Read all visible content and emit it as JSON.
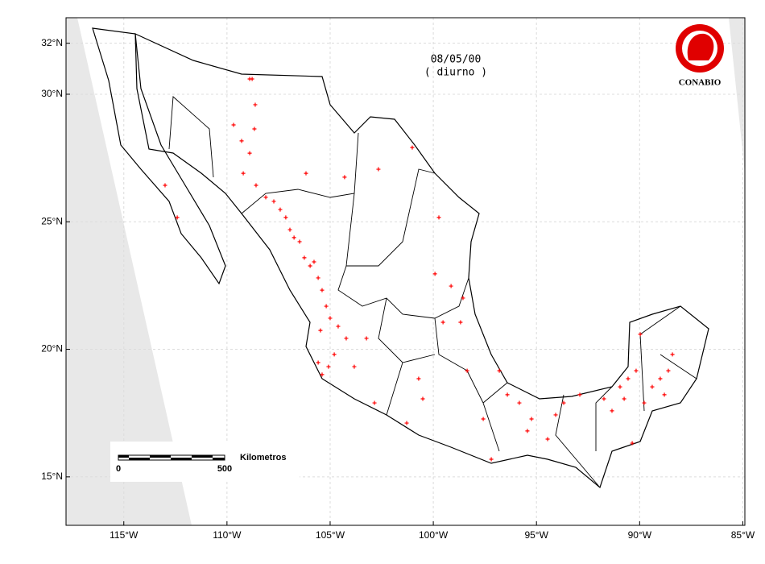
{
  "chart_data": {
    "type": "scatter",
    "title": "08/05/00",
    "subtitle": "( diurno )",
    "color": "#ff0000",
    "x": [
      -108.9,
      -108.78,
      -108.63,
      -108.67,
      -109.68,
      -109.29,
      -108.9,
      -109.21,
      -108.59,
      -108.12,
      -107.73,
      -107.42,
      -107.15,
      -106.95,
      -106.75,
      -106.48,
      -106.25,
      -105.97,
      -105.78,
      -105.58,
      -105.39,
      -105.19,
      -105.0,
      -105.47,
      -104.61,
      -104.22,
      -104.8,
      -105.08,
      -105.39,
      -105.58,
      -103.83,
      -103.24,
      -102.66,
      -101.02,
      -99.73,
      -99.14,
      -98.56,
      -98.68,
      -99.53,
      -100.71,
      -100.51,
      -101.29,
      -102.85,
      -98.36,
      -96.8,
      -96.41,
      -95.83,
      -95.24,
      -95.44,
      -94.46,
      -94.07,
      -93.68,
      -92.9,
      -91.73,
      -90.95,
      -90.75,
      -90.56,
      -90.17,
      -89.97,
      -89.78,
      -89.39,
      -89.0,
      -88.61,
      -88.8,
      -88.41,
      -91.34,
      -90.36,
      -97.19,
      -106.17,
      -104.3,
      -113.0,
      -112.41,
      -99.92,
      -97.58
    ],
    "y": [
      30.6,
      30.6,
      29.59,
      28.64,
      28.8,
      28.17,
      27.69,
      26.9,
      26.43,
      25.96,
      25.8,
      25.48,
      25.17,
      24.69,
      24.38,
      24.22,
      23.59,
      23.27,
      23.43,
      22.8,
      22.32,
      21.69,
      21.22,
      20.74,
      20.9,
      20.43,
      19.8,
      19.32,
      19.01,
      19.48,
      19.32,
      20.43,
      27.06,
      27.91,
      25.17,
      22.48,
      22.01,
      21.06,
      21.06,
      18.85,
      18.06,
      17.11,
      17.9,
      19.16,
      19.16,
      18.22,
      17.9,
      17.27,
      16.8,
      16.48,
      17.43,
      17.9,
      18.22,
      18.06,
      18.53,
      18.06,
      18.85,
      19.16,
      20.59,
      17.9,
      18.53,
      18.85,
      19.16,
      18.22,
      19.8,
      17.59,
      16.32,
      15.69,
      26.9,
      26.75,
      26.43,
      25.17,
      22.96,
      17.27
    ],
    "xlim": [
      -117.8,
      -84.9
    ],
    "ylim": [
      13.1,
      33.0
    ],
    "xticks": [
      {
        "value": -115,
        "label": "115°W"
      },
      {
        "value": -110,
        "label": "110°W"
      },
      {
        "value": -105,
        "label": "105°W"
      },
      {
        "value": -100,
        "label": "100°W"
      },
      {
        "value": -95,
        "label": "95°W"
      },
      {
        "value": -90,
        "label": "90°W"
      },
      {
        "value": -85,
        "label": "85°W"
      }
    ],
    "yticks": [
      {
        "value": 15,
        "label": "15°N"
      },
      {
        "value": 20,
        "label": "20°N"
      },
      {
        "value": 25,
        "label": "25°N"
      },
      {
        "value": 30,
        "label": "30°N"
      },
      {
        "value": 32,
        "label": "32°N"
      }
    ],
    "grid": true
  },
  "logo": "CONABIO",
  "scale_bar": {
    "label": "Kilometros",
    "start": "0",
    "end": "500"
  }
}
